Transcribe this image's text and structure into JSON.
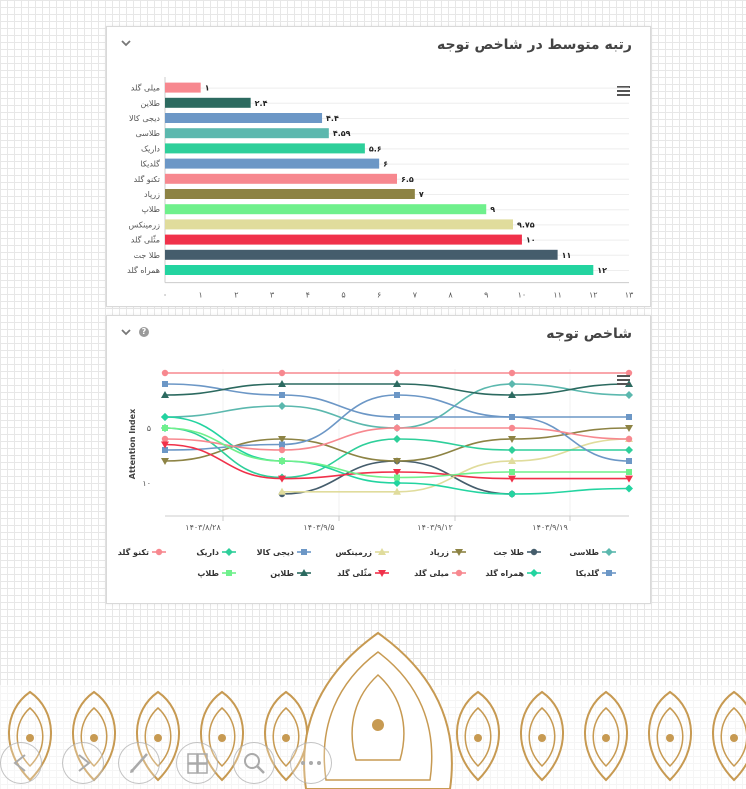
{
  "panel1": {
    "title": "رتبه متوسط در شاخص توجه"
  },
  "panel2": {
    "title": "شاخص توجه"
  },
  "chart1": {
    "type": "bar",
    "orientation": "horizontal",
    "categories": [
      "میلی گلد",
      "طلاین",
      "دیجی کالا",
      "طلاسی",
      "داریک",
      "گلدیکا",
      "تکنو گلد",
      "زرپاد",
      "طلاپ",
      "زرمینکس",
      "مثّلی گلد",
      "طلا جت",
      "همراه گلد"
    ],
    "values": [
      1,
      2.4,
      4.4,
      4.59,
      5.6,
      6,
      6.5,
      7,
      9,
      9.75,
      10,
      11,
      12
    ],
    "value_labels": [
      "۱",
      "۲.۴",
      "۴.۴",
      "۴.۵۹",
      "۵.۶",
      "۶",
      "۶.۵",
      "۷",
      "۹",
      "۹.۷۵",
      "۱۰",
      "۱۱",
      "۱۲"
    ],
    "colors": [
      "#f7888f",
      "#2c6a60",
      "#6c97c6",
      "#5bb8ae",
      "#2ecf9a",
      "#6c97c6",
      "#f7888f",
      "#8d8344",
      "#6ff08c",
      "#e0dc9c",
      "#f0314a",
      "#455d6c",
      "#23d4a0"
    ],
    "xlim": [
      0,
      13
    ],
    "ticks": [
      "۰",
      "۱",
      "۲",
      "۳",
      "۴",
      "۵",
      "۶",
      "۷",
      "۸",
      "۹",
      "۱۰",
      "۱۱",
      "۱۲",
      "۱۳"
    ],
    "grid": true
  },
  "chart2": {
    "type": "line",
    "ylabel": "Attention Index",
    "y_reversed": true,
    "ylim": [
      1,
      13
    ],
    "y_ticks": [
      {
        "value": 5,
        "label": "۵"
      },
      {
        "value": 10,
        "label": "۱۰"
      }
    ],
    "x_ticks": [
      "۱۴۰۳/۸/۲۸",
      "۱۴۰۳/۹/۵",
      "۱۴۰۳/۹/۱۲",
      "۱۴۰۳/۹/۱۹"
    ],
    "series": [
      {
        "name": "طلاسی",
        "color": "#5bb8ae",
        "marker": "diamond",
        "values": [
          4,
          3,
          5,
          1,
          2
        ]
      },
      {
        "name": "طلا جت",
        "color": "#455d6c",
        "marker": "circle",
        "values": [
          null,
          11,
          8,
          11,
          null
        ]
      },
      {
        "name": "زرپاد",
        "color": "#8d8344",
        "marker": "triangle-down",
        "values": [
          8,
          6,
          8,
          6,
          5
        ]
      },
      {
        "name": "زرمینکس",
        "color": "#e0dc9c",
        "marker": "triangle",
        "values": [
          null,
          10.8,
          10.8,
          8,
          6
        ]
      },
      {
        "name": "دیجی کالا",
        "color": "#6c97c6",
        "marker": "square",
        "values": [
          1,
          2,
          4,
          4,
          4
        ]
      },
      {
        "name": "داریک",
        "color": "#2ecf9a",
        "marker": "diamond",
        "values": [
          5,
          9.5,
          6,
          7,
          7
        ]
      },
      {
        "name": "تکنو گلد",
        "color": "#f7888f",
        "marker": "circle",
        "values": [
          0,
          0,
          0,
          0,
          0
        ]
      },
      {
        "name": "گلدیکا",
        "color": "#6c97c6",
        "marker": "square",
        "values": [
          7,
          6.5,
          2,
          4,
          8
        ]
      },
      {
        "name": "همراه گلد",
        "color": "#23d4a0",
        "marker": "diamond",
        "values": [
          4,
          8,
          10,
          11,
          10.5
        ]
      },
      {
        "name": "میلی گلد",
        "color": "#f7888f",
        "marker": "circle",
        "values": [
          6,
          7,
          5,
          5,
          6
        ]
      },
      {
        "name": "مثّلی گلد",
        "color": "#f0314a",
        "marker": "triangle-down",
        "values": [
          6.5,
          9.6,
          9,
          9.6,
          9.6
        ]
      },
      {
        "name": "طلاین",
        "color": "#2c6a60",
        "marker": "triangle",
        "values": [
          2,
          1,
          1,
          2,
          1
        ]
      },
      {
        "name": "طلاپ",
        "color": "#6ff08c",
        "marker": "square",
        "values": [
          5,
          8,
          9.5,
          9,
          9
        ]
      }
    ]
  },
  "ornament": {
    "color": "#c79a52"
  },
  "slide_controls": [
    "prev-icon",
    "next-icon",
    "pen-icon",
    "slides-icon",
    "zoom-icon",
    "more-icon"
  ]
}
